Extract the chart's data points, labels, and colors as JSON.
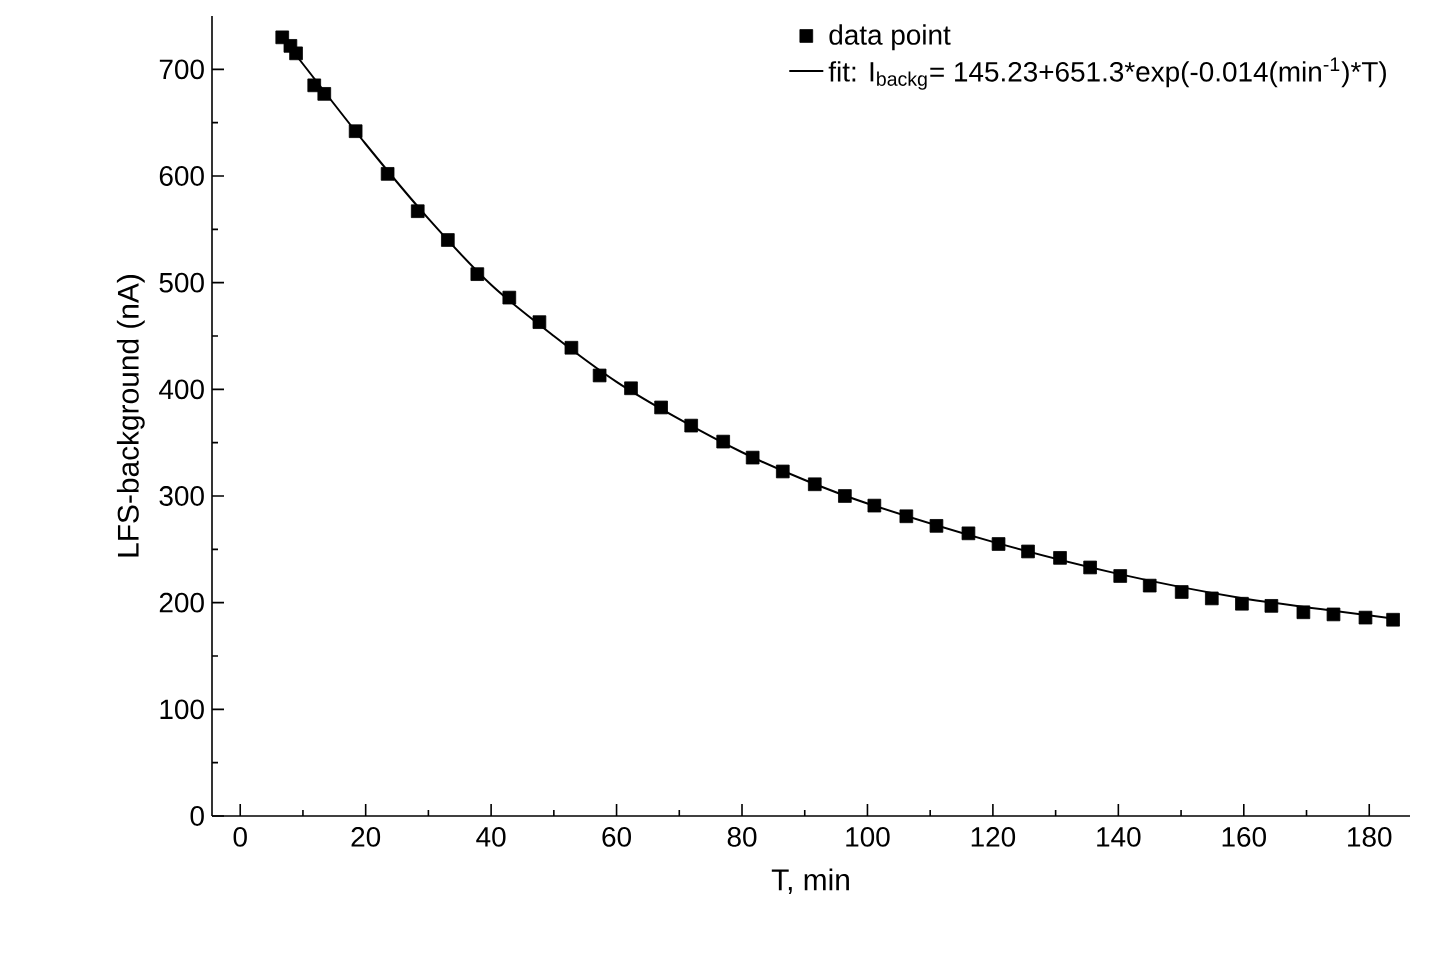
{
  "chart_data": {
    "type": "scatter",
    "xlabel": "T,    min",
    "ylabel": "LFS-background (nA)",
    "xlim": [
      -4.5,
      186.5
    ],
    "ylim": [
      0,
      750
    ],
    "xticks": [
      0,
      20,
      40,
      60,
      80,
      100,
      120,
      140,
      160,
      180
    ],
    "yticks": [
      0,
      100,
      200,
      300,
      400,
      500,
      600,
      700
    ],
    "legend": "top right",
    "grid": false,
    "series": [
      {
        "name": "data point",
        "marker": "square",
        "color": "#000000",
        "x": [
          6.7,
          8,
          8.9,
          11.8,
          13.4,
          18.4,
          23.5,
          28.3,
          33.1,
          37.8,
          42.9,
          47.7,
          52.8,
          57.3,
          62.3,
          67.1,
          71.9,
          77,
          81.7,
          86.5,
          91.6,
          96.4,
          101.1,
          106.2,
          111,
          116.1,
          120.9,
          125.6,
          130.7,
          135.5,
          140.3,
          145,
          150.1,
          154.9,
          159.7,
          164.4,
          169.5,
          174.3,
          179.4,
          183.8
        ],
        "values": [
          730,
          722,
          715,
          685,
          677,
          642,
          602,
          567,
          540,
          508,
          486,
          463,
          439,
          413,
          401,
          383,
          366,
          351,
          336,
          323,
          311,
          300,
          291,
          281,
          272,
          265,
          255,
          248,
          242,
          233,
          225,
          216,
          210,
          204,
          199,
          197,
          191,
          189,
          186,
          184
        ]
      },
      {
        "name": "fit: I$_{backg}$= 145.23+651.3*exp(-0.014(min$^{-1}$)*T)",
        "type": "line",
        "marker": "none",
        "line_style": "solid",
        "color": "#000000",
        "x": [
          6.7,
          10,
          20,
          30,
          40,
          50,
          60,
          70,
          80,
          90,
          100,
          120,
          140,
          160,
          184
        ],
        "values": [
          730,
          705,
          630,
          560,
          498,
          450,
          407,
          372,
          341,
          315,
          293,
          257,
          227,
          204,
          185
        ]
      }
    ]
  }
}
